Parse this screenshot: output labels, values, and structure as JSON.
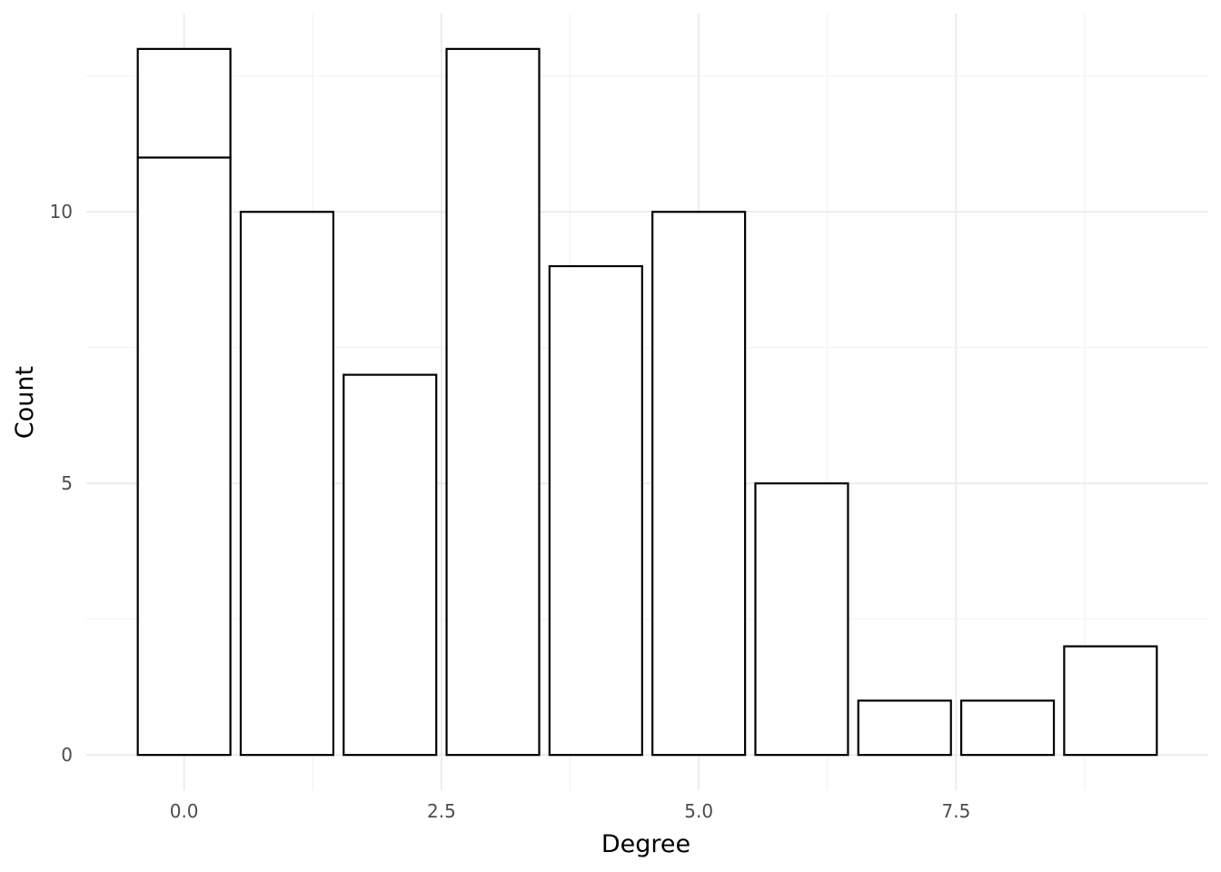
{
  "chart_data": {
    "type": "bar",
    "title": "",
    "xlabel": "Degree",
    "ylabel": "Count",
    "x": [
      0,
      0,
      1,
      2,
      3,
      4,
      5,
      6,
      7,
      8,
      9
    ],
    "values": [
      11,
      2,
      10,
      7,
      13,
      9,
      10,
      5,
      1,
      1,
      2
    ],
    "stacked_base": [
      0,
      11,
      0,
      0,
      0,
      0,
      0,
      0,
      0,
      0,
      0
    ],
    "xlim": [
      -0.95,
      9.95
    ],
    "ylim": [
      -0.65,
      13.65
    ],
    "x_major_ticks": [
      0,
      2.5,
      5,
      7.5
    ],
    "x_tick_labels": [
      "0.0",
      "2.5",
      "5.0",
      "7.5"
    ],
    "x_minor_ticks": [
      1.25,
      3.75,
      6.25,
      8.75
    ],
    "y_major_ticks": [
      0,
      5,
      10
    ],
    "y_tick_labels": [
      "0",
      "5",
      "10"
    ],
    "y_minor_ticks": [
      2.5,
      7.5,
      12.5
    ],
    "bar_width": 0.9,
    "grid": true,
    "legend": "none",
    "colors": {
      "bar_fill": "#ffffff",
      "bar_outline": "#000000",
      "grid_major": "#ebebeb",
      "grid_minor": "#f2f2f2",
      "tick_text": "#4d4d4d",
      "title_text": "#000000",
      "background": "#ffffff"
    }
  }
}
